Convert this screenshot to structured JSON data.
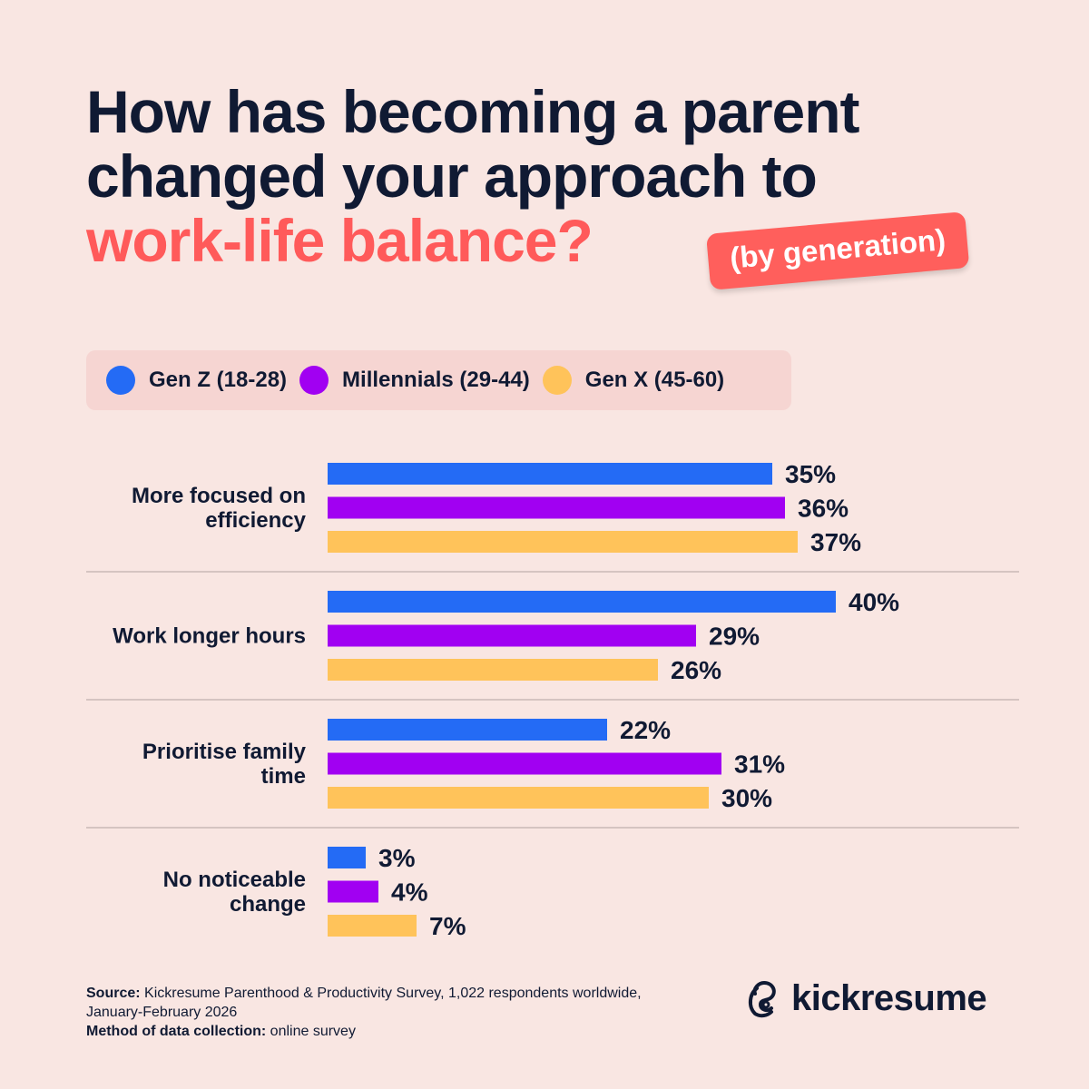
{
  "title": {
    "line1": "How has becoming a parent",
    "line2": "changed your approach to",
    "line3": "work-life balance?"
  },
  "badge": "(by generation)",
  "colors": {
    "gen_z": "#246BF5",
    "millennials": "#A100F2",
    "gen_x": "#FFC35A",
    "accent": "#FF5A5A",
    "text": "#101A33"
  },
  "chart_data": {
    "type": "bar",
    "orientation": "horizontal",
    "categories": [
      "More focused on efficiency",
      "Work longer hours",
      "Prioritise family time",
      "No noticeable change"
    ],
    "series": [
      {
        "name": "Gen Z (18-28)",
        "values": [
          35,
          40,
          22,
          3
        ]
      },
      {
        "name": "Millennials (29-44)",
        "values": [
          36,
          29,
          31,
          4
        ]
      },
      {
        "name": "Gen X (45-60)",
        "values": [
          37,
          26,
          30,
          7
        ]
      }
    ],
    "unit": "%",
    "legend": "top",
    "grid": false
  },
  "footer": {
    "source_label": "Source:",
    "source_text": "Kickresume Parenthood & Productivity Survey, 1,022 respondents worldwide,",
    "source_text2": "January-February 2026",
    "method_label": "Method of data collection:",
    "method_text": "online survey"
  },
  "logo": "kickresume"
}
